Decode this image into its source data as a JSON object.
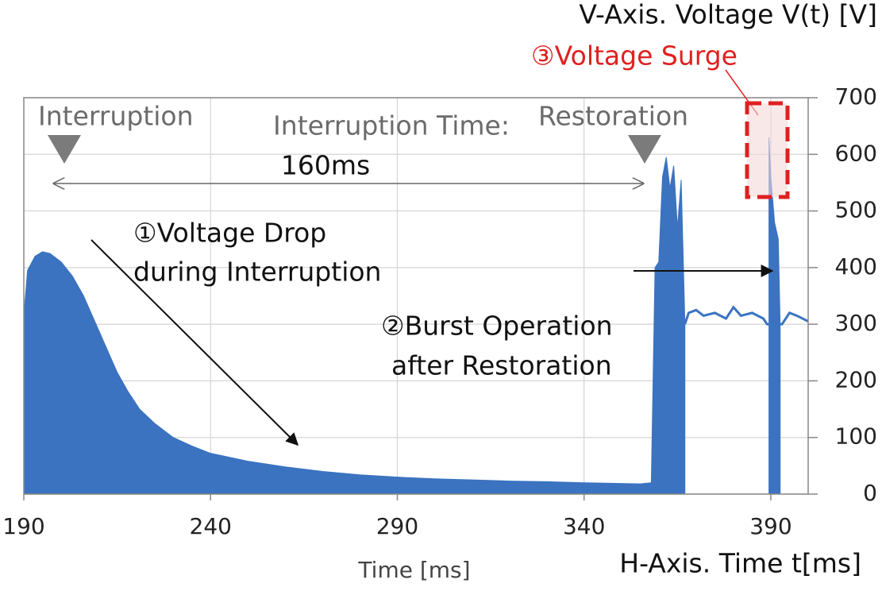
{
  "chart_data": {
    "type": "area",
    "y_axis_label": "V-Axis. Voltage V(t) [V]",
    "x_axis_label": "Time [ms]",
    "x_axis_label_2": "H-Axis. Time t[ms]",
    "annotations": [
      "③Voltage Surge",
      "Interruption",
      "Restoration",
      "Interruption Time:",
      "160ms",
      "①Voltage Drop",
      "during Interruption",
      "②Burst Operation",
      "after Restoration"
    ],
    "xlim": [
      190,
      400
    ],
    "xticks": [
      190,
      240,
      290,
      340,
      390
    ],
    "ylim": [
      0,
      700
    ],
    "yticks": [
      0,
      100,
      200,
      300,
      400,
      500,
      600,
      700
    ],
    "grid": true,
    "series": [
      {
        "kind": "area",
        "color": "#3b73c0",
        "x": [
          190,
          191,
          193,
          195,
          197,
          200,
          203,
          206,
          209,
          212,
          215,
          218,
          221,
          225,
          230,
          235,
          240,
          250,
          260,
          270,
          280,
          290,
          300,
          310,
          320,
          330,
          340,
          355,
          358,
          359,
          360,
          361,
          362,
          363,
          364,
          365,
          366,
          367,
          389,
          389.5,
          390,
          391,
          392,
          392.5
        ],
        "values": [
          315,
          395,
          420,
          428,
          425,
          410,
          385,
          350,
          305,
          260,
          215,
          180,
          150,
          125,
          100,
          85,
          72,
          58,
          48,
          40,
          34,
          30,
          27,
          25,
          23,
          22,
          20,
          18,
          20,
          400,
          410,
          560,
          595,
          540,
          580,
          470,
          555,
          300,
          null,
          630,
          560,
          480,
          450,
          300
        ]
      },
      {
        "kind": "line",
        "color": "#3b73c0",
        "x": [
          367,
          368,
          370,
          372,
          375,
          378,
          380,
          382,
          385,
          388,
          389,
          393,
          395,
          397,
          400
        ],
        "values": [
          300,
          320,
          325,
          315,
          320,
          310,
          330,
          315,
          320,
          310,
          300,
          300,
          320,
          315,
          305
        ]
      }
    ]
  }
}
